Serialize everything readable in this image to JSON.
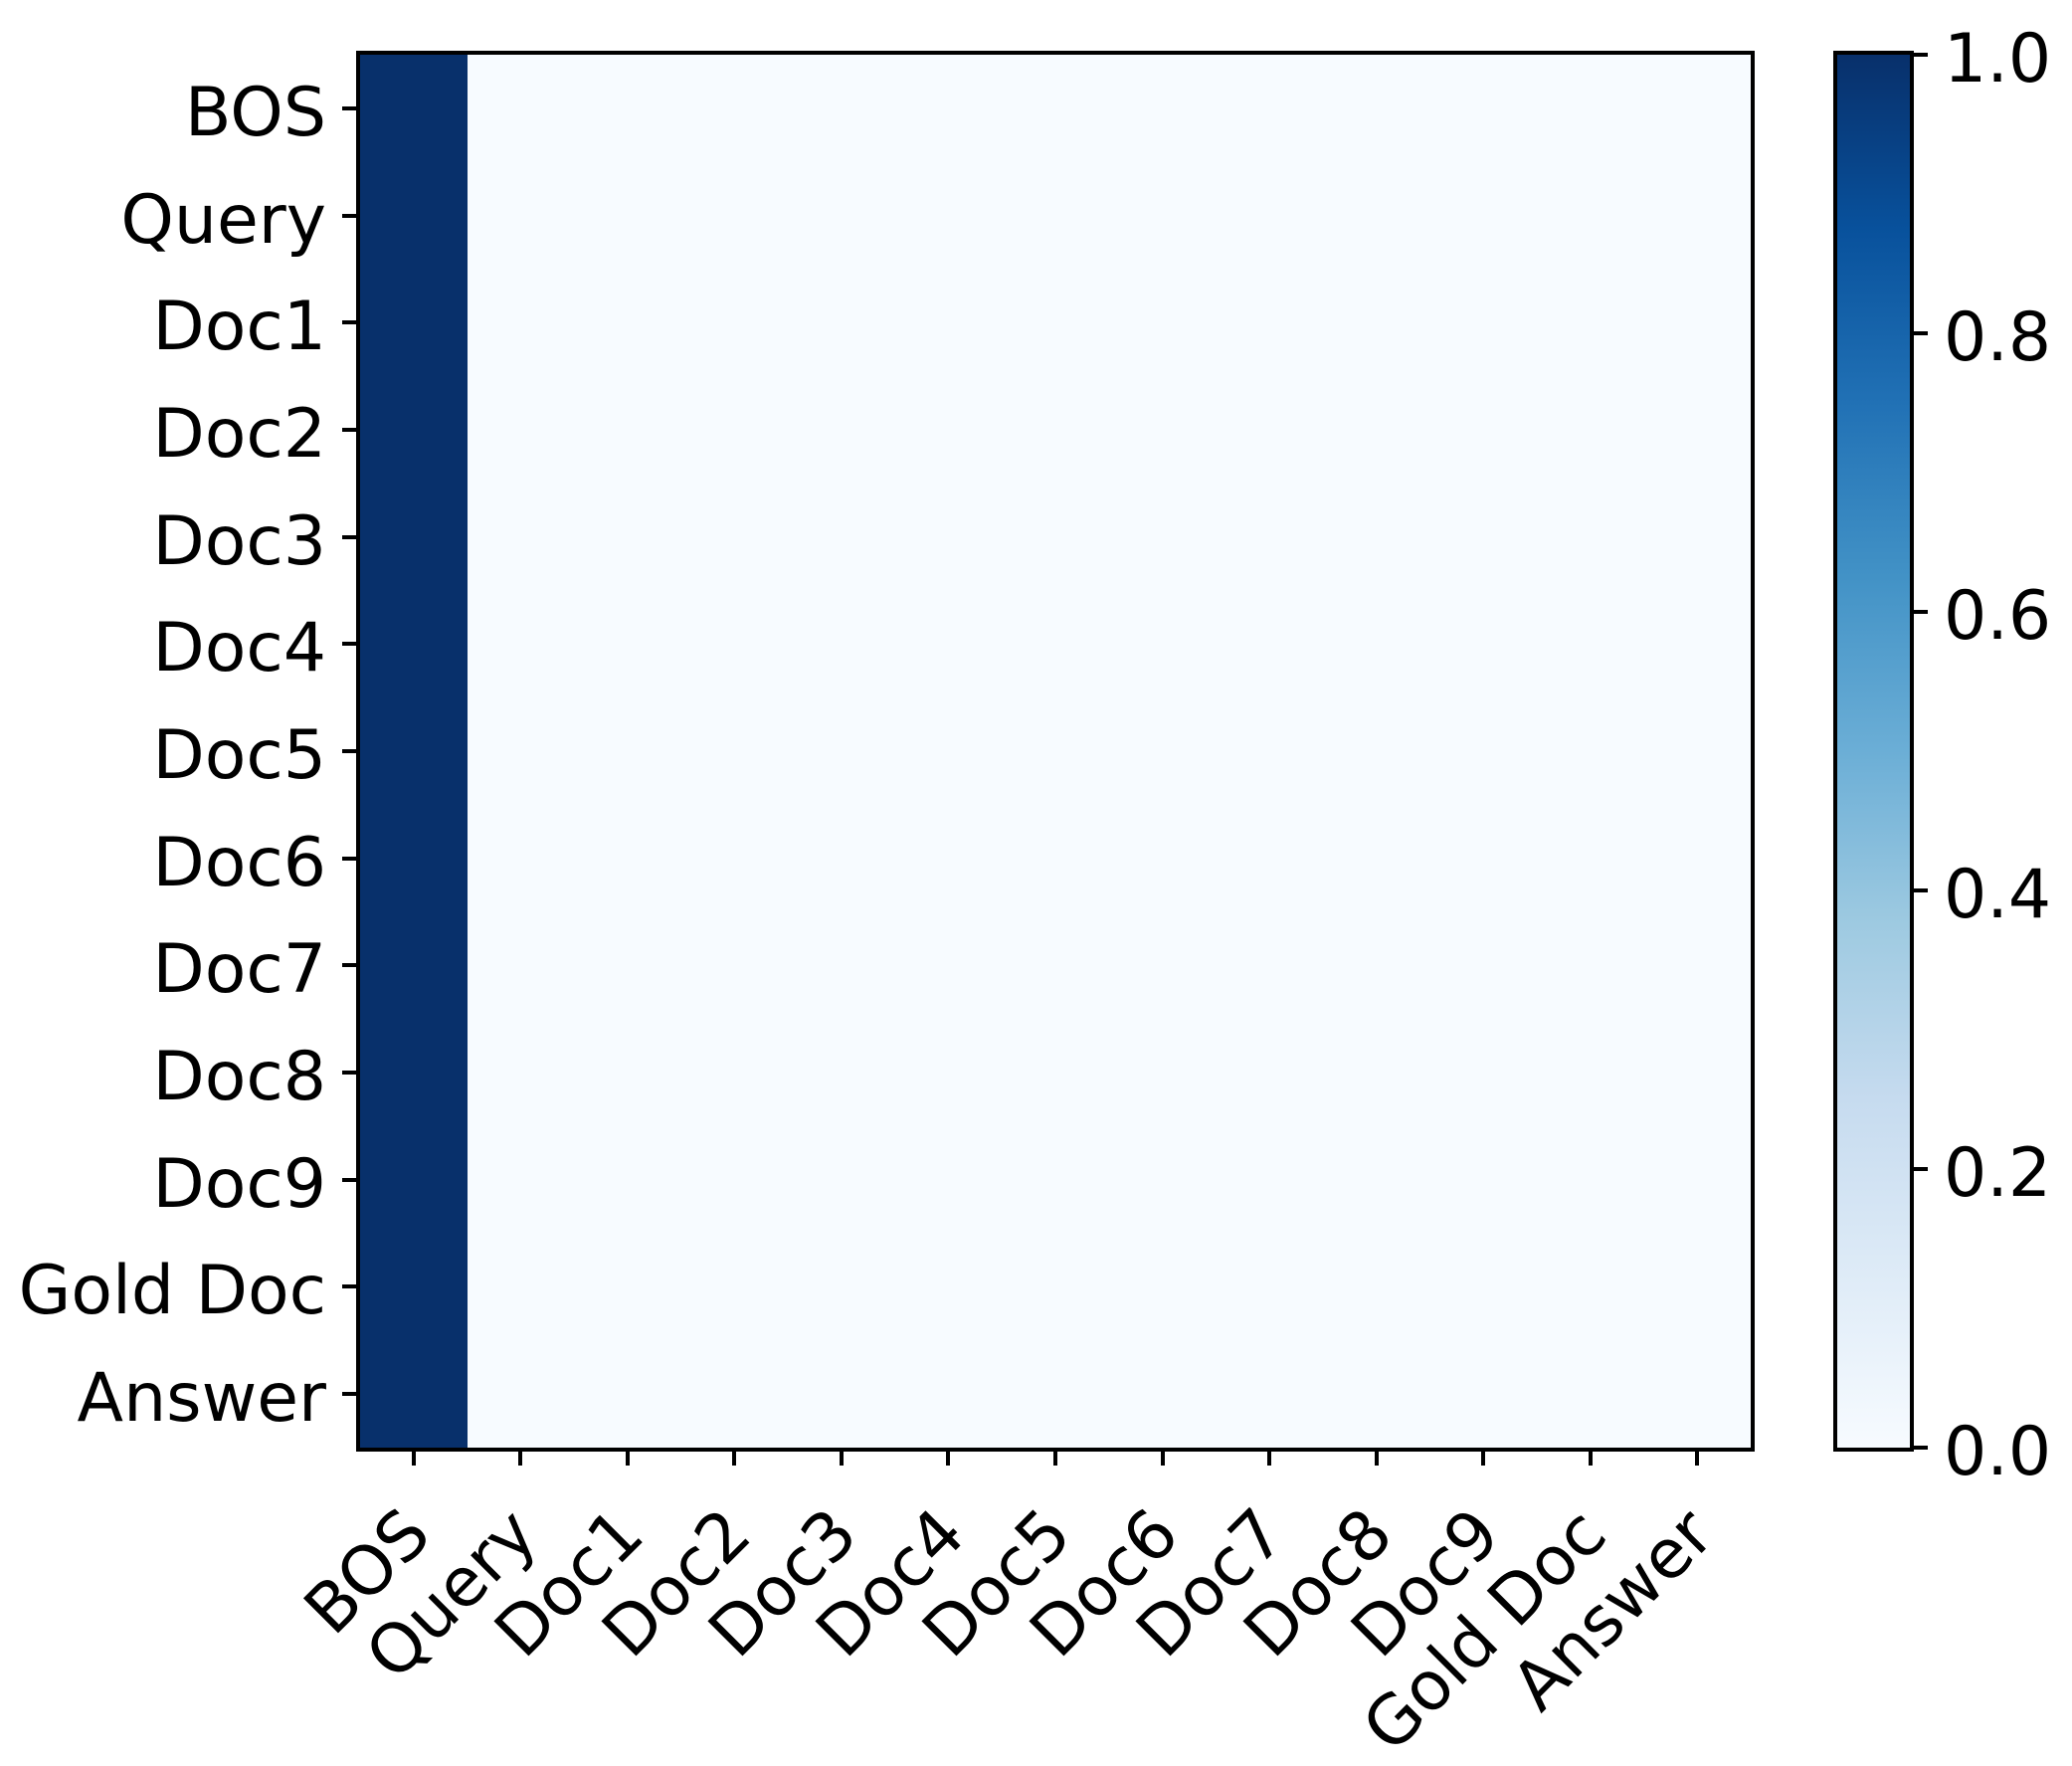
{
  "chart_data": {
    "type": "heatmap",
    "row_labels": [
      "BOS",
      "Query",
      "Doc1",
      "Doc2",
      "Doc3",
      "Doc4",
      "Doc5",
      "Doc6",
      "Doc7",
      "Doc8",
      "Doc9",
      "Gold Doc",
      "Answer"
    ],
    "col_labels": [
      "BOS",
      "Query",
      "Doc1",
      "Doc2",
      "Doc3",
      "Doc4",
      "Doc5",
      "Doc6",
      "Doc7",
      "Doc8",
      "Doc9",
      "Gold Doc",
      "Answer"
    ],
    "matrix": [
      [
        1.0,
        0.0,
        0.0,
        0.0,
        0.0,
        0.0,
        0.0,
        0.0,
        0.0,
        0.0,
        0.0,
        0.0,
        0.0
      ],
      [
        1.0,
        0.0,
        0.0,
        0.0,
        0.0,
        0.0,
        0.0,
        0.0,
        0.0,
        0.0,
        0.0,
        0.0,
        0.0
      ],
      [
        1.0,
        0.0,
        0.0,
        0.0,
        0.0,
        0.0,
        0.0,
        0.0,
        0.0,
        0.0,
        0.0,
        0.0,
        0.0
      ],
      [
        1.0,
        0.0,
        0.0,
        0.0,
        0.0,
        0.0,
        0.0,
        0.0,
        0.0,
        0.0,
        0.0,
        0.0,
        0.0
      ],
      [
        1.0,
        0.0,
        0.0,
        0.0,
        0.0,
        0.0,
        0.0,
        0.0,
        0.0,
        0.0,
        0.0,
        0.0,
        0.0
      ],
      [
        1.0,
        0.0,
        0.0,
        0.0,
        0.0,
        0.0,
        0.0,
        0.0,
        0.0,
        0.0,
        0.0,
        0.0,
        0.0
      ],
      [
        1.0,
        0.0,
        0.0,
        0.0,
        0.0,
        0.0,
        0.0,
        0.0,
        0.0,
        0.0,
        0.0,
        0.0,
        0.0
      ],
      [
        1.0,
        0.0,
        0.0,
        0.0,
        0.0,
        0.0,
        0.0,
        0.0,
        0.0,
        0.0,
        0.0,
        0.0,
        0.0
      ],
      [
        1.0,
        0.0,
        0.0,
        0.0,
        0.0,
        0.0,
        0.0,
        0.0,
        0.0,
        0.0,
        0.0,
        0.0,
        0.0
      ],
      [
        1.0,
        0.0,
        0.0,
        0.0,
        0.0,
        0.0,
        0.0,
        0.0,
        0.0,
        0.0,
        0.0,
        0.0,
        0.0
      ],
      [
        1.0,
        0.0,
        0.0,
        0.0,
        0.0,
        0.0,
        0.0,
        0.0,
        0.0,
        0.0,
        0.0,
        0.0,
        0.0
      ],
      [
        1.0,
        0.0,
        0.0,
        0.0,
        0.0,
        0.0,
        0.0,
        0.0,
        0.0,
        0.0,
        0.0,
        0.0,
        0.0
      ],
      [
        1.0,
        0.0,
        0.0,
        0.0,
        0.0,
        0.0,
        0.0,
        0.0,
        0.0,
        0.0,
        0.0,
        0.0,
        0.0
      ]
    ],
    "colormap": "Blues",
    "cmap_stops": [
      [
        0.0,
        "#f7fbff"
      ],
      [
        0.125,
        "#deebf7"
      ],
      [
        0.25,
        "#c6dbef"
      ],
      [
        0.375,
        "#9ecae1"
      ],
      [
        0.5,
        "#6baed6"
      ],
      [
        0.625,
        "#4292c6"
      ],
      [
        0.75,
        "#2171b5"
      ],
      [
        0.875,
        "#08519c"
      ],
      [
        1.0,
        "#08306b"
      ]
    ],
    "colorbar": {
      "min": 0.0,
      "max": 1.0,
      "tick_values": [
        1.0,
        0.8,
        0.6,
        0.4,
        0.2,
        0.0
      ],
      "tick_labels": [
        "1.0",
        "0.8",
        "0.6",
        "0.4",
        "0.2",
        "0.0"
      ]
    },
    "axis_color": "#000000",
    "grid": false,
    "x_tick_rotation_deg": 45
  }
}
